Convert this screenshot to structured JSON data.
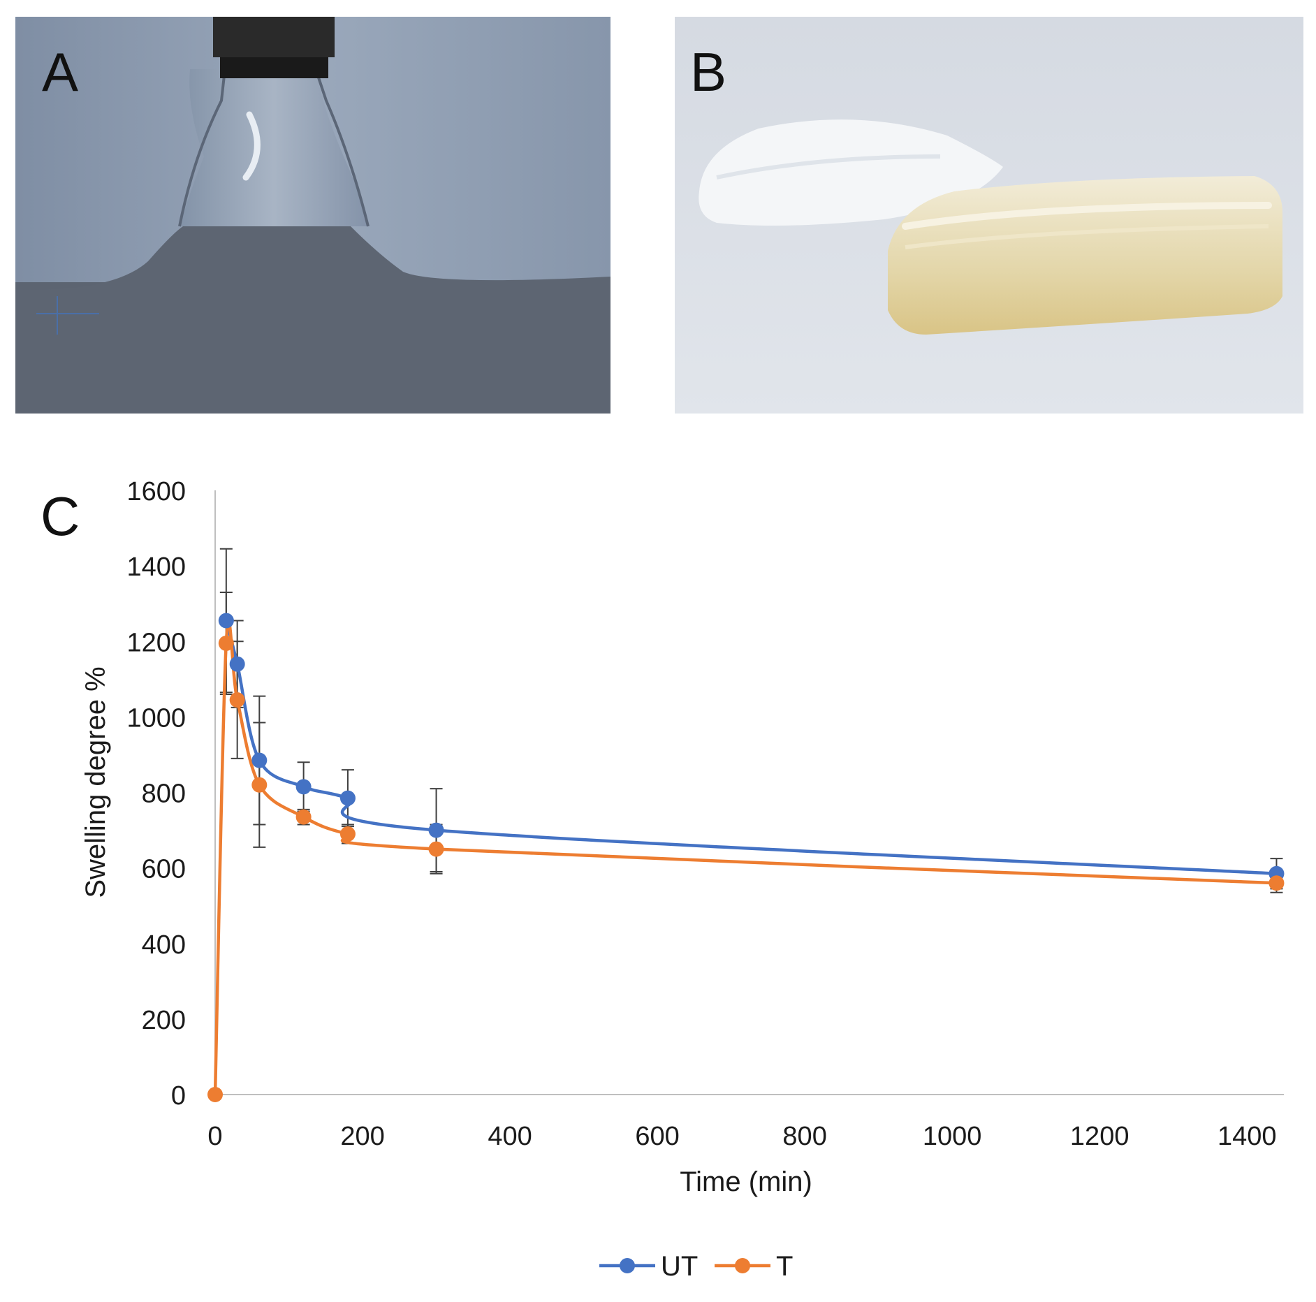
{
  "panels": {
    "a": {
      "label": "A"
    },
    "b": {
      "label": "B"
    },
    "c": {
      "label": "C"
    }
  },
  "colors": {
    "UT": "#4472C4",
    "T": "#ED7D31",
    "axis": "#BFBFBF",
    "error_bar": "#404040",
    "text": "#1a1a1a"
  },
  "chart_data": {
    "type": "line",
    "title": "",
    "xlabel": "Time (min)",
    "ylabel": "Swelling degree %",
    "xlim": [
      0,
      1450
    ],
    "ylim": [
      0,
      1600
    ],
    "xticks": [
      0,
      200,
      400,
      600,
      800,
      1000,
      1200,
      1400
    ],
    "yticks": [
      0,
      200,
      400,
      600,
      800,
      1000,
      1200,
      1400,
      1600
    ],
    "grid": false,
    "legend_position": "bottom-center",
    "smoothed": true,
    "series": [
      {
        "name": "UT",
        "x": [
          15,
          30,
          60,
          120,
          180,
          300,
          1440
        ],
        "y": [
          1255,
          1140,
          885,
          815,
          785,
          700,
          585
        ],
        "err": [
          190,
          115,
          170,
          65,
          75,
          110,
          40
        ]
      },
      {
        "name": "T",
        "x": [
          0,
          15,
          30,
          60,
          120,
          180,
          300,
          1440
        ],
        "y": [
          0,
          1195,
          1045,
          820,
          735,
          690,
          650,
          560
        ],
        "err": [
          0,
          135,
          155,
          165,
          20,
          25,
          65,
          25
        ]
      }
    ]
  }
}
